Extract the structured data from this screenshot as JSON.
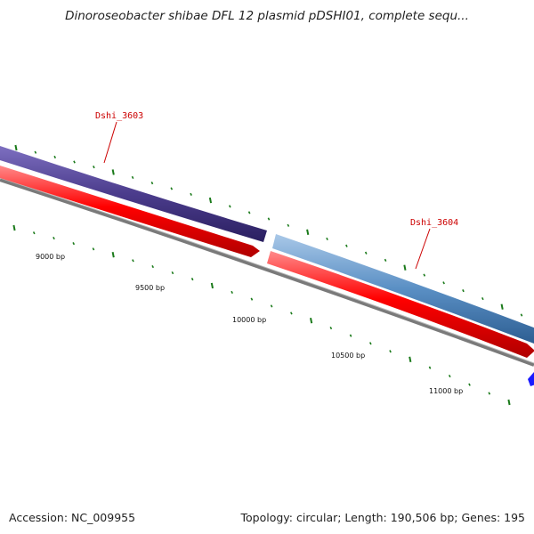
{
  "title": "Dinoroseobacter shibae DFL 12 plasmid pDSHI01, complete sequ...",
  "footer": {
    "accession": "Accession: NC_009955",
    "stats": "Topology: circular; Length: 190,506 bp; Genes: 195"
  },
  "genes": [
    {
      "name": "Dshi_3603",
      "color": "#4b3c8c",
      "label_color": "#cc0000"
    },
    {
      "name": "Dshi_3604",
      "color": "#5a8fc4",
      "label_color": "#cc0000"
    }
  ],
  "cds_color": "#ff0000",
  "backbone_color": "#808080",
  "tick_color": "#1a7a1a",
  "scale_labels": [
    "9000 bp",
    "9500 bp",
    "10000 bp",
    "10500 bp",
    "11000 bp"
  ],
  "partial_marker_color": "#1a1aff"
}
